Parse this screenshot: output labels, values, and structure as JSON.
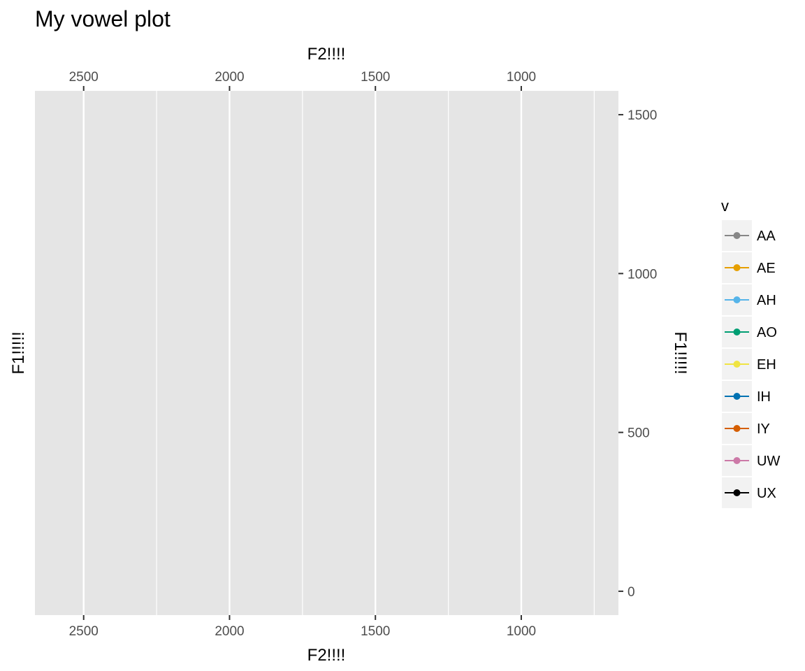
{
  "chart_data": {
    "type": "line",
    "title": "My vowel plot",
    "xlabel": "F2!!!!",
    "ylabel": "F1!!!!!",
    "x_axis_reversed": true,
    "xlim": [
      2667,
      667
    ],
    "ylim": [
      -75,
      1575
    ],
    "x_ticks": [
      2500,
      2000,
      1500,
      1000
    ],
    "x_minor_ticks": [
      2250,
      1750,
      1250,
      750
    ],
    "y_ticks": [
      0,
      500,
      1000,
      1500
    ],
    "x_axis_positions": [
      "top",
      "bottom"
    ],
    "y_title_positions": [
      "left",
      "right"
    ],
    "y_tick_side": "right",
    "grid": "vertical only",
    "legend_position": "right",
    "legend": {
      "title": "v",
      "entries": [
        {
          "label": "AA",
          "color": "#878787"
        },
        {
          "label": "AE",
          "color": "#E69F00"
        },
        {
          "label": "AH",
          "color": "#56B4E9"
        },
        {
          "label": "AO",
          "color": "#009E73"
        },
        {
          "label": "EH",
          "color": "#F0E442"
        },
        {
          "label": "IH",
          "color": "#0072B2"
        },
        {
          "label": "IY",
          "color": "#D55E00"
        },
        {
          "label": "UW",
          "color": "#CC79A7"
        },
        {
          "label": "UX",
          "color": "#000000"
        }
      ]
    },
    "series": [],
    "panel_background": "#E5E5E5"
  }
}
